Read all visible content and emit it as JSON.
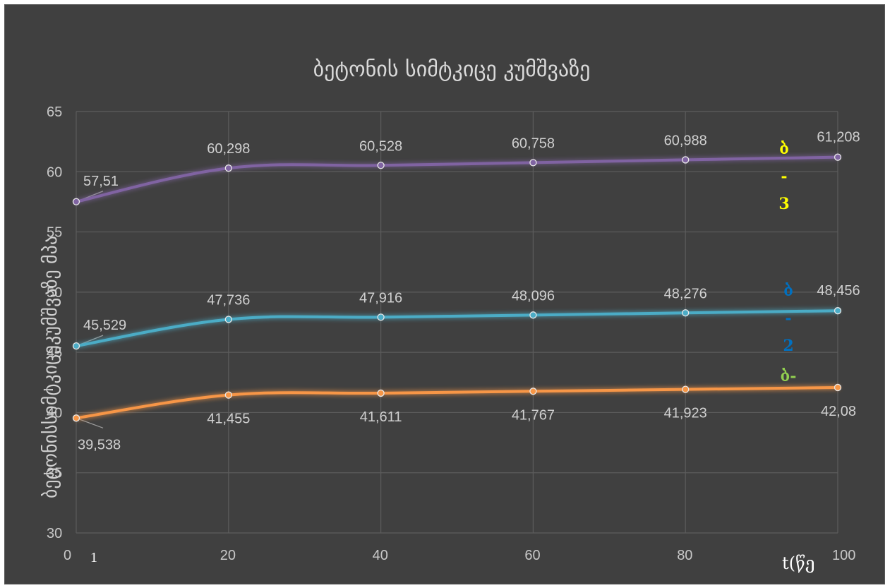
{
  "chart_data": {
    "type": "line",
    "title": "ბეტონის სიმტკიცე კუმშვაზე",
    "ylabel": "ბეტონისსიმტკიცეკუმშვაზე მპა",
    "xlabel": "t(წე",
    "x": [
      0,
      20,
      40,
      60,
      80,
      100
    ],
    "xticks": [
      "0",
      "20",
      "40",
      "60",
      "80",
      "100"
    ],
    "xlim": [
      0,
      100
    ],
    "ylim": [
      30,
      65
    ],
    "yticks": [
      "30",
      "35",
      "40",
      "45",
      "50",
      "55",
      "60",
      "65"
    ],
    "grid": true,
    "series": [
      {
        "values": [
          57.51,
          60.298,
          60.528,
          60.758,
          60.988,
          61.208
        ],
        "labels": [
          "57,51",
          "60,298",
          "60,528",
          "60,758",
          "60,988",
          "61,208"
        ],
        "color": "#8064a2"
      },
      {
        "values": [
          45.529,
          47.736,
          47.916,
          48.096,
          48.276,
          48.456
        ],
        "labels": [
          "45,529",
          "47,736",
          "47,916",
          "48,096",
          "48,276",
          "48,456"
        ],
        "color": "#4bacc6"
      },
      {
        "values": [
          39.538,
          41.455,
          41.611,
          41.767,
          41.923,
          42.08
        ],
        "labels": [
          "39,538",
          "41,455",
          "41,611",
          "41,767",
          "41,923",
          "42,08"
        ],
        "color": "#f79646"
      }
    ],
    "series_markers": [
      {
        "lines": [
          "ბ",
          "-",
          "3"
        ],
        "color": "#ffff00"
      },
      {
        "lines": [
          "ბ",
          "-",
          "2"
        ],
        "color": "#0070c0"
      },
      {
        "lines": [
          "ბ-"
        ],
        "color": "#92d050"
      }
    ],
    "extra_text": "1"
  }
}
